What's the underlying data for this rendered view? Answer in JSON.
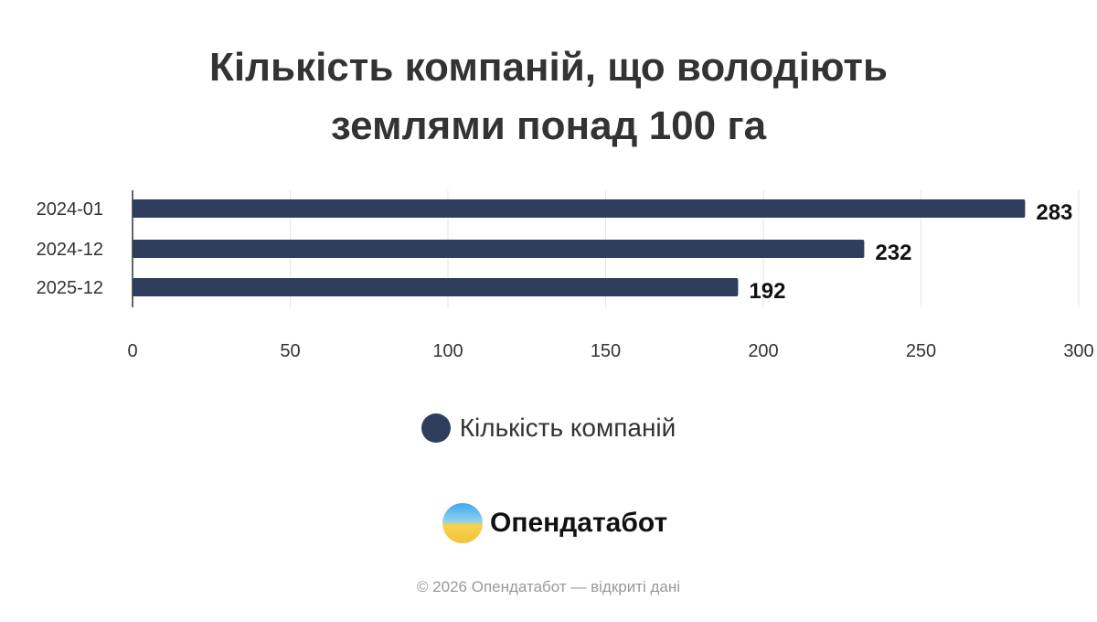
{
  "chart_data": {
    "type": "bar",
    "orientation": "horizontal",
    "title": "Кількість компаній, що володіють землями понад 100 га",
    "title_lines": [
      "Кількість компаній, що володіють",
      "землями понад 100 га"
    ],
    "categories": [
      "2024-01",
      "2024-12",
      "2025-12"
    ],
    "series": [
      {
        "name": "Кількість компаній",
        "values": [
          283,
          232,
          192
        ],
        "color": "#2e3e5c"
      }
    ],
    "xlim": [
      0,
      300
    ],
    "xticks": [
      "0",
      "50",
      "100",
      "150",
      "200",
      "250",
      "300"
    ],
    "grid": true,
    "data_labels": true,
    "legend": "bottom"
  },
  "branding": {
    "logo_text": "Опендатабот",
    "footer": "© 2026 Опендатабот — відкриті дані"
  }
}
